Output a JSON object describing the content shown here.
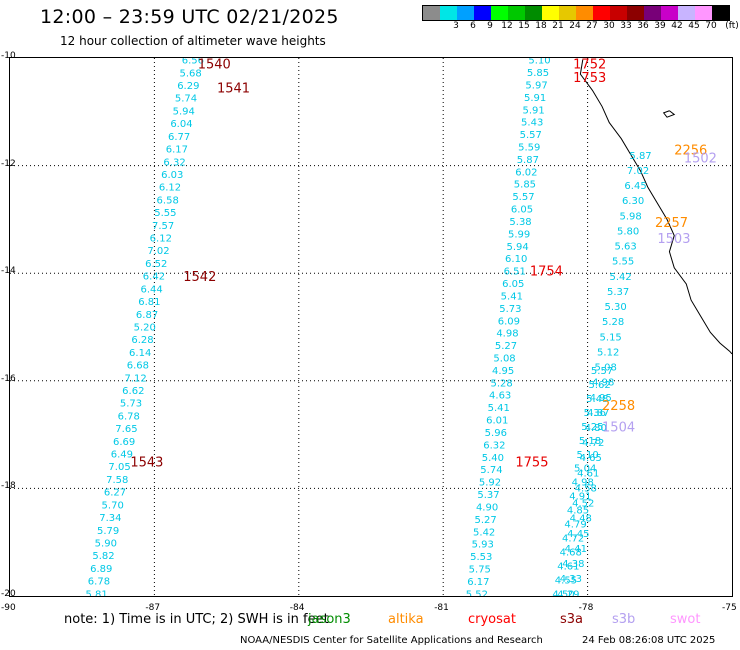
{
  "header": {
    "title": "12:00 – 23:59 UTC 02/21/2025",
    "subtitle": "12 hour collection of altimeter wave heights"
  },
  "legend": {
    "unit": "(ft)",
    "bins": [
      {
        "label": "",
        "color": "#8c8c8c"
      },
      {
        "label": "3",
        "color": "#00e6e6"
      },
      {
        "label": "6",
        "color": "#00a0ff"
      },
      {
        "label": "9",
        "color": "#0000ff"
      },
      {
        "label": "12",
        "color": "#00ff00"
      },
      {
        "label": "15",
        "color": "#00c800"
      },
      {
        "label": "18",
        "color": "#008c00"
      },
      {
        "label": "21",
        "color": "#ffff00"
      },
      {
        "label": "24",
        "color": "#e6c800"
      },
      {
        "label": "27",
        "color": "#ff8c00"
      },
      {
        "label": "30",
        "color": "#ff0000"
      },
      {
        "label": "33",
        "color": "#c80000"
      },
      {
        "label": "36",
        "color": "#8c0000"
      },
      {
        "label": "39",
        "color": "#780078"
      },
      {
        "label": "42",
        "color": "#c800c8"
      },
      {
        "label": "45",
        "color": "#c8b4ff"
      },
      {
        "label": "70",
        "color": "#ff96ff"
      },
      {
        "label": "",
        "color": "#000000"
      }
    ]
  },
  "axes": {
    "lat_ticks": [
      "-10",
      "-12",
      "-14",
      "-16",
      "-18",
      "-20"
    ],
    "lon_ticks": [
      "-90",
      "-87",
      "-84",
      "-81",
      "-78",
      "-75"
    ],
    "lat_range": [
      -20,
      -10
    ],
    "lon_range": [
      -90,
      -75
    ]
  },
  "colors": {
    "swh_cyan": "#00c8e6",
    "time_darkred": "#8c0000",
    "time_red": "#e60000",
    "time_orange": "#ff8c00",
    "time_lavender": "#b4a0f0",
    "coast": "#000000",
    "grid": "#000000"
  },
  "tracks": [
    {
      "name": "track-a",
      "swh": [
        "6.56",
        "5.68",
        "6.29",
        "5.74",
        "5.94",
        "6.04",
        "6.77",
        "6.17",
        "6.32",
        "6.03",
        "6.12",
        "6.58",
        "5.55",
        "7.57",
        "6.12",
        "7.02",
        "6.52",
        "6.42",
        "6.44",
        "6.81",
        "6.87",
        "5.20",
        "6.28",
        "6.14",
        "6.68",
        "7.12",
        "6.62",
        "5.73",
        "6.78",
        "7.65",
        "6.69",
        "6.49",
        "7.05",
        "7.58",
        "6.27",
        "5.70",
        "7.34",
        "5.79",
        "5.90",
        "5.82",
        "6.89",
        "6.78",
        "5.81"
      ],
      "start": [
        -10.03,
        -86.2
      ],
      "end": [
        -19.95,
        -88.2
      ]
    },
    {
      "name": "track-b",
      "swh": [
        "5.10",
        "5.85",
        "5.97",
        "5.91",
        "5.91",
        "5.43",
        "5.57",
        "5.59",
        "5.87",
        "6.02",
        "5.85",
        "5.57",
        "6.05",
        "5.38",
        "5.99",
        "5.94",
        "6.10",
        "6.51",
        "6.05",
        "5.41",
        "5.73",
        "6.09",
        "4.98",
        "5.27",
        "5.08",
        "4.95",
        "5.28",
        "4.63",
        "5.41",
        "6.01",
        "5.96",
        "6.32",
        "5.40",
        "5.74",
        "5.92",
        "5.37",
        "4.90",
        "5.27",
        "5.42",
        "5.93",
        "5.53",
        "5.75",
        "6.17",
        "5.52"
      ],
      "start": [
        -10.03,
        -79.0
      ],
      "end": [
        -19.95,
        -80.3
      ]
    },
    {
      "name": "track-c",
      "swh": [
        "5.87",
        "7.02",
        "6.45",
        "6.30",
        "5.98",
        "5.80",
        "5.63",
        "5.55",
        "5.42",
        "5.37",
        "5.30",
        "5.28",
        "5.15",
        "5.12",
        "5.08",
        "4.98",
        "4.95",
        "4.87",
        "4.80",
        "4.72",
        "4.65",
        "4.61",
        "4.58",
        "4.52",
        "4.48",
        "4.45",
        "4.41",
        "4.38",
        "4.33",
        "4.29"
      ],
      "start": [
        -11.8,
        -76.9
      ],
      "end": [
        -19.95,
        -78.4
      ]
    },
    {
      "name": "track-d",
      "swh": [
        "5.57",
        "5.62",
        "5.48",
        "5.36",
        "5.25",
        "5.18",
        "5.10",
        "5.04",
        "4.98",
        "4.91",
        "4.85",
        "4.79",
        "4.72",
        "4.68",
        "4.61",
        "4.55",
        "4.50"
      ],
      "start": [
        -15.8,
        -77.7
      ],
      "end": [
        -19.95,
        -78.5
      ]
    }
  ],
  "time_labels": [
    {
      "text": "1540",
      "lat": -10.1,
      "lon": -86.1,
      "color": "#8c0000"
    },
    {
      "text": "1541",
      "lat": -10.55,
      "lon": -85.7,
      "color": "#8c0000"
    },
    {
      "text": "1542",
      "lat": -14.05,
      "lon": -86.4,
      "color": "#8c0000"
    },
    {
      "text": "1543",
      "lat": -17.5,
      "lon": -87.5,
      "color": "#8c0000"
    },
    {
      "text": "1752",
      "lat": -10.1,
      "lon": -78.3,
      "color": "#e60000"
    },
    {
      "text": "1753",
      "lat": -10.35,
      "lon": -78.3,
      "color": "#e60000"
    },
    {
      "text": "1754",
      "lat": -13.95,
      "lon": -79.2,
      "color": "#e60000"
    },
    {
      "text": "1755",
      "lat": -17.5,
      "lon": -79.5,
      "color": "#e60000"
    },
    {
      "text": "2256",
      "lat": -11.7,
      "lon": -76.2,
      "color": "#ff8c00"
    },
    {
      "text": "2257",
      "lat": -13.05,
      "lon": -76.6,
      "color": "#ff8c00"
    },
    {
      "text": "2258",
      "lat": -16.45,
      "lon": -77.7,
      "color": "#ff8c00"
    },
    {
      "text": "1502",
      "lat": -11.85,
      "lon": -76.0,
      "color": "#b4a0f0"
    },
    {
      "text": "1503",
      "lat": -13.35,
      "lon": -76.55,
      "color": "#b4a0f0"
    },
    {
      "text": "1504",
      "lat": -16.85,
      "lon": -77.7,
      "color": "#b4a0f0"
    }
  ],
  "coastline": [
    [
      -10.03,
      -78.1
    ],
    [
      -10.3,
      -78.15
    ],
    [
      -10.6,
      -77.9
    ],
    [
      -10.9,
      -77.7
    ],
    [
      -11.2,
      -77.55
    ],
    [
      -11.5,
      -77.3
    ],
    [
      -11.8,
      -77.1
    ],
    [
      -12.1,
      -76.9
    ],
    [
      -12.4,
      -76.75
    ],
    [
      -12.7,
      -76.55
    ],
    [
      -13.0,
      -76.35
    ],
    [
      -13.3,
      -76.2
    ],
    [
      -13.6,
      -76.3
    ],
    [
      -13.9,
      -76.2
    ],
    [
      -14.2,
      -75.95
    ],
    [
      -14.5,
      -75.85
    ],
    [
      -14.8,
      -75.65
    ],
    [
      -15.1,
      -75.45
    ],
    [
      -15.3,
      -75.25
    ],
    [
      -15.45,
      -75.05
    ],
    [
      -15.5,
      -75.0
    ]
  ],
  "island": [
    [
      -10.98,
      -76.3
    ],
    [
      -11.05,
      -76.2
    ],
    [
      -11.1,
      -76.35
    ],
    [
      -11.02,
      -76.42
    ],
    [
      -10.98,
      -76.3
    ]
  ],
  "footer": {
    "note": "note: 1) Time is in UTC; 2) SWH is in feet",
    "satellites": [
      {
        "name": "jason3",
        "color": "#008c00"
      },
      {
        "name": "altika",
        "color": "#ff8c00"
      },
      {
        "name": "cryosat",
        "color": "#ff0000"
      },
      {
        "name": "s3a",
        "color": "#8c0000"
      },
      {
        "name": "s3b",
        "color": "#b4a0f0"
      },
      {
        "name": "swot",
        "color": "#ff96ff"
      }
    ],
    "credit": "NOAA/NESDIS Center for Satellite Applications and Research",
    "timestamp": "24 Feb 08:26:08 UTC 2025"
  }
}
